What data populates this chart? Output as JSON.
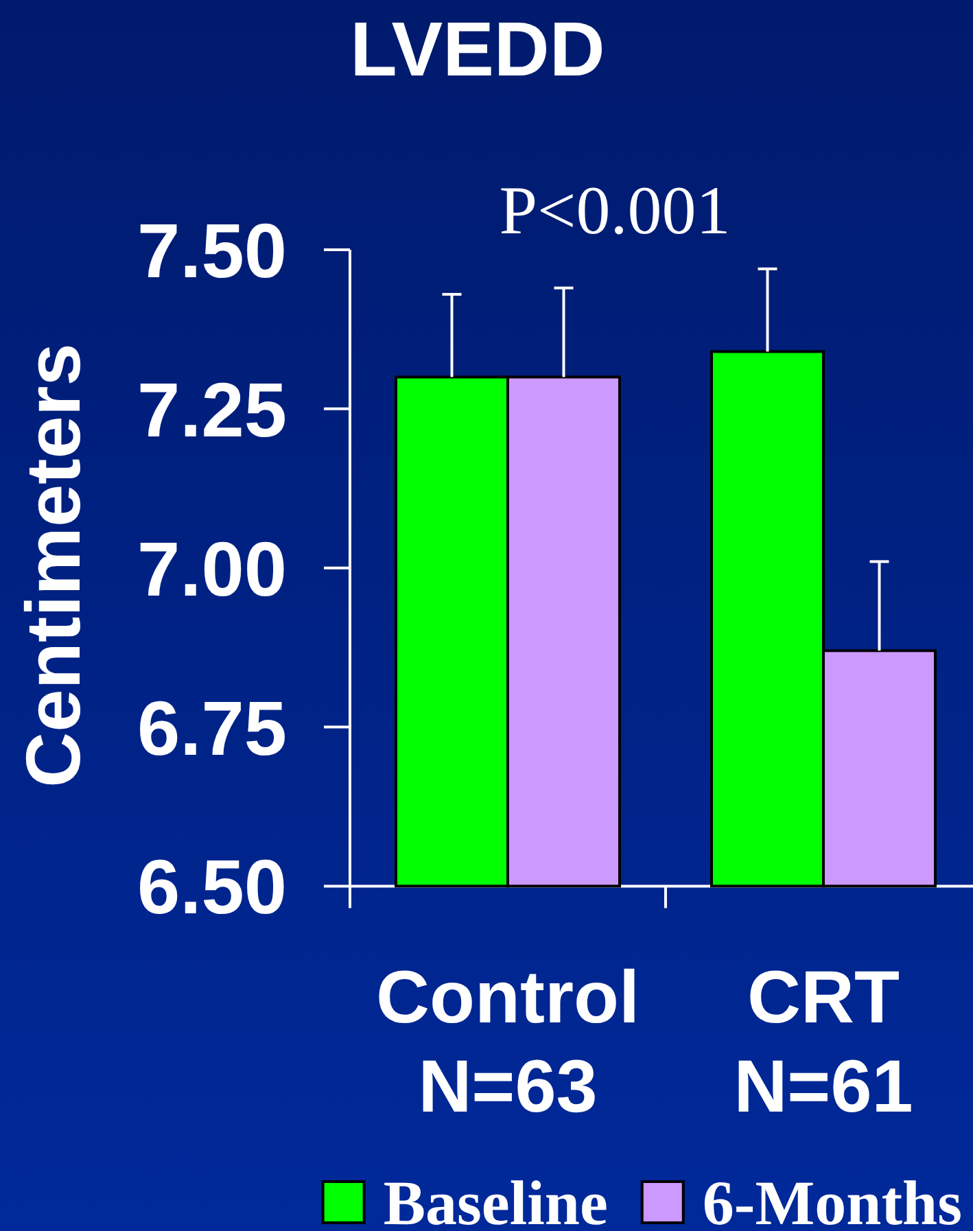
{
  "chart_data": {
    "type": "bar",
    "title": "LVEDD",
    "ylabel": "Centimeters",
    "annotations": [
      "P<0.001"
    ],
    "categories": [
      "Control\nN=63",
      "CRT\nN=61"
    ],
    "series": [
      {
        "name": "Baseline",
        "color": "#00ff00",
        "values": [
          7.3,
          7.34
        ],
        "errors": [
          [
            7.3,
            7.43
          ],
          [
            7.34,
            7.47
          ]
        ]
      },
      {
        "name": "6-Months",
        "color": "#cc99ff",
        "values": [
          7.3,
          6.87
        ],
        "errors": [
          [
            7.3,
            7.44
          ],
          [
            6.87,
            7.01
          ]
        ]
      }
    ],
    "ylim": [
      6.5,
      7.5
    ],
    "yticks": [
      {
        "value": 6.5,
        "label": "6.50"
      },
      6.75,
      {
        "value": 7.0,
        "label": "7.00"
      },
      7.25,
      {
        "value": 7.5,
        "label": "7.50"
      }
    ],
    "legend": "bottom"
  }
}
